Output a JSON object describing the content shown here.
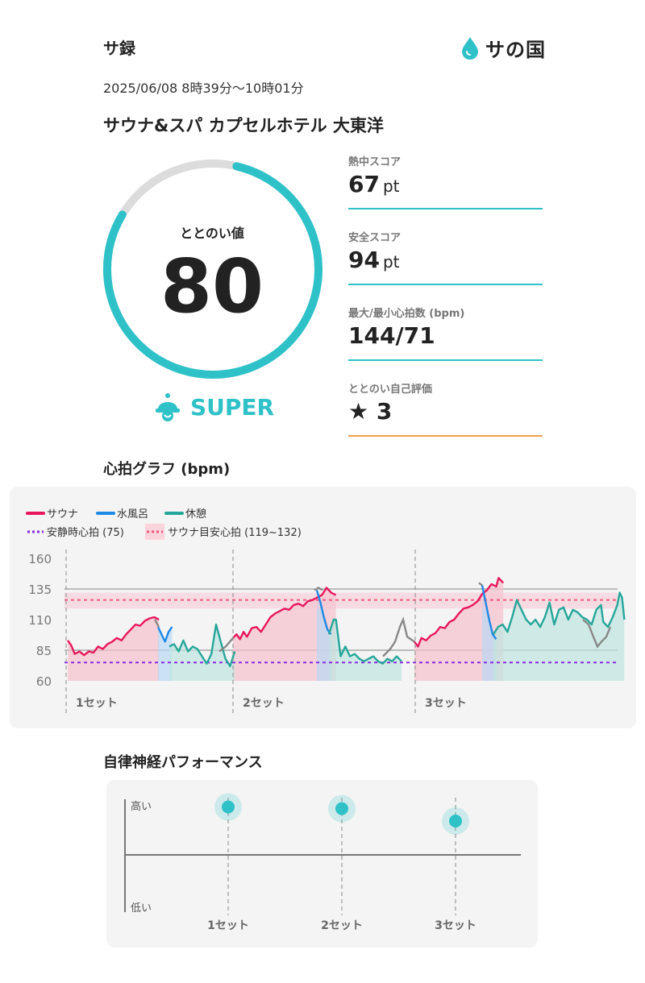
{
  "header": {
    "brand": "サ録",
    "logo_text": "サの国",
    "datetime": "2025/06/08 8時39分〜10時01分",
    "facility": "サウナ&スパ カプセルホテル 大東洋"
  },
  "totonoi": {
    "label": "ととのい値",
    "value": "80",
    "fraction": 0.8,
    "rank": "SUPER",
    "colors": {
      "accent": "#2ec2c8",
      "track": "#dcdcdc"
    }
  },
  "metrics": [
    {
      "label": "熱中スコア",
      "value": "67",
      "unit": "pt"
    },
    {
      "label": "安全スコア",
      "value": "94",
      "unit": "pt"
    },
    {
      "label": "最大/最小心拍数 (bpm)",
      "value": "144/71",
      "unit": ""
    },
    {
      "label": "ととのい自己評価",
      "value": "★ 3",
      "unit": ""
    }
  ],
  "heart_rate": {
    "title": "心拍グラフ (bpm)",
    "legend": {
      "sauna": "サウナ",
      "water": "水風呂",
      "rest": "休憩",
      "resting": "安静時心拍 (75)",
      "target": "サウナ目安心拍 (119~132)"
    },
    "colors": {
      "sauna": "#e8175d",
      "water": "#1e88e5",
      "rest": "#26a69a",
      "other": "#888888",
      "resting": "#8a2be2",
      "target": "#f05a7e"
    },
    "set_labels": [
      "1セット",
      "2セット",
      "3セット"
    ]
  },
  "autonomic": {
    "title": "自律神経パフォーマンス",
    "high_label": "高い",
    "low_label": "低い",
    "set_labels": [
      "1セット",
      "2セット",
      "3セット"
    ]
  },
  "chart_data": {
    "type": "line",
    "title": "心拍グラフ (bpm)",
    "ylim": [
      60,
      160
    ],
    "yticks": [
      160,
      135,
      110,
      85,
      60
    ],
    "resting_hr": 75,
    "target_range": [
      119,
      132
    ],
    "series": [
      {
        "name": "サウナ",
        "segments": [
          [
            [
              0,
              93
            ],
            [
              3,
              89
            ],
            [
              6,
              82
            ],
            [
              10,
              84
            ],
            [
              14,
              81
            ],
            [
              18,
              84
            ],
            [
              22,
              83
            ],
            [
              26,
              88
            ],
            [
              30,
              86
            ],
            [
              34,
              90
            ],
            [
              38,
              92
            ],
            [
              42,
              95
            ],
            [
              46,
              93
            ],
            [
              50,
              98
            ],
            [
              54,
              102
            ],
            [
              58,
              106
            ],
            [
              62,
              105
            ],
            [
              66,
              109
            ],
            [
              70,
              111
            ],
            [
              74,
              112
            ],
            [
              78,
              110
            ]
          ],
          [
            [
              0,
              95
            ],
            [
              3,
              98
            ],
            [
              6,
              94
            ],
            [
              9,
              100
            ],
            [
              12,
              96
            ],
            [
              16,
              103
            ],
            [
              20,
              104
            ],
            [
              24,
              100
            ],
            [
              28,
              106
            ],
            [
              32,
              112
            ],
            [
              36,
              115
            ],
            [
              40,
              117
            ],
            [
              44,
              119
            ],
            [
              48,
              118
            ],
            [
              52,
              122
            ],
            [
              56,
              123
            ],
            [
              60,
              121
            ],
            [
              64,
              125
            ],
            [
              68,
              126
            ],
            [
              72,
              128
            ],
            [
              76,
              130
            ],
            [
              80,
              136
            ],
            [
              84,
              132
            ],
            [
              88,
              130
            ]
          ],
          [
            [
              0,
              92
            ],
            [
              3,
              88
            ],
            [
              6,
              95
            ],
            [
              10,
              93
            ],
            [
              14,
              97
            ],
            [
              18,
              99
            ],
            [
              22,
              104
            ],
            [
              26,
              103
            ],
            [
              30,
              108
            ],
            [
              34,
              110
            ],
            [
              38,
              115
            ],
            [
              42,
              119
            ],
            [
              46,
              120
            ],
            [
              50,
              122
            ],
            [
              54,
              125
            ],
            [
              58,
              131
            ],
            [
              62,
              134
            ],
            [
              66,
              139
            ],
            [
              70,
              137
            ],
            [
              72,
              144
            ],
            [
              76,
              140
            ]
          ]
        ]
      },
      {
        "name": "水風呂",
        "segments": [
          [
            [
              0,
              104
            ],
            [
              3,
              98
            ],
            [
              6,
              92
            ],
            [
              9,
              100
            ],
            [
              12,
              104
            ]
          ],
          [
            [
              0,
              134
            ],
            [
              3,
              124
            ],
            [
              6,
              112
            ],
            [
              9,
              102
            ],
            [
              12,
              98
            ]
          ],
          [
            [
              0,
              138
            ],
            [
              3,
              124
            ],
            [
              6,
              110
            ],
            [
              9,
              98
            ],
            [
              12,
              94
            ]
          ]
        ]
      },
      {
        "name": "休憩",
        "segments": [
          [
            [
              0,
              88
            ],
            [
              4,
              90
            ],
            [
              8,
              84
            ],
            [
              12,
              93
            ],
            [
              16,
              84
            ],
            [
              20,
              88
            ],
            [
              24,
              86
            ],
            [
              28,
              80
            ],
            [
              32,
              74
            ],
            [
              36,
              82
            ],
            [
              40,
              106
            ],
            [
              44,
              92
            ],
            [
              48,
              78
            ],
            [
              52,
              72
            ],
            [
              56,
              84
            ]
          ],
          [
            [
              0,
              98
            ],
            [
              4,
              110
            ],
            [
              6,
              110
            ],
            [
              10,
              80
            ],
            [
              14,
              88
            ],
            [
              18,
              80
            ],
            [
              22,
              82
            ],
            [
              26,
              78
            ],
            [
              30,
              76
            ],
            [
              34,
              78
            ],
            [
              38,
              80
            ],
            [
              42,
              76
            ],
            [
              46,
              74
            ],
            [
              50,
              78
            ],
            [
              54,
              76
            ],
            [
              58,
              80
            ],
            [
              62,
              76
            ]
          ],
          [
            [
              0,
              98
            ],
            [
              4,
              104
            ],
            [
              8,
              106
            ],
            [
              12,
              100
            ],
            [
              16,
              112
            ],
            [
              20,
              126
            ],
            [
              24,
              118
            ],
            [
              28,
              110
            ],
            [
              32,
              106
            ],
            [
              36,
              110
            ],
            [
              40,
              104
            ],
            [
              44,
              112
            ],
            [
              48,
              124
            ],
            [
              52,
              106
            ],
            [
              56,
              118
            ],
            [
              60,
              120
            ],
            [
              64,
              110
            ],
            [
              68,
              118
            ],
            [
              72,
              116
            ],
            [
              76,
              112
            ],
            [
              80,
              110
            ],
            [
              84,
              106
            ],
            [
              88,
              118
            ],
            [
              92,
              122
            ],
            [
              94,
              108
            ],
            [
              98,
              104
            ],
            [
              102,
              112
            ],
            [
              106,
              122
            ],
            [
              108,
              132
            ],
            [
              110,
              128
            ],
            [
              112,
              110
            ]
          ]
        ]
      }
    ],
    "x_sets": [
      "1セット",
      "2セット",
      "3セット"
    ],
    "autonomic_levels": [
      {
        "set": "1セット",
        "level": 0.85
      },
      {
        "set": "2セット",
        "level": 0.82
      },
      {
        "set": "3セット",
        "level": 0.6
      }
    ]
  }
}
